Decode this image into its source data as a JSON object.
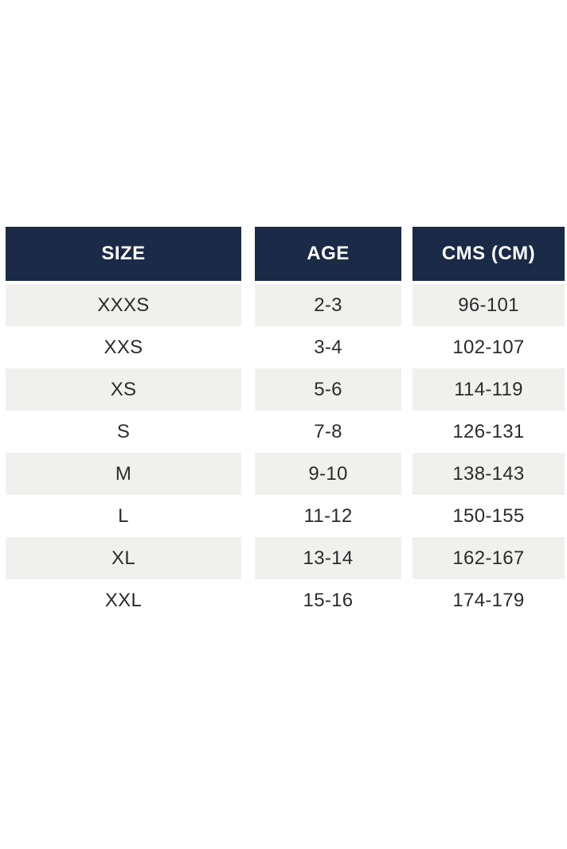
{
  "table": {
    "columns": [
      "SIZE",
      "AGE",
      "CMS (CM)"
    ],
    "rows": [
      {
        "size": "XXXS",
        "age": "2-3",
        "cms": "96-101"
      },
      {
        "size": "XXS",
        "age": "3-4",
        "cms": "102-107"
      },
      {
        "size": "XS",
        "age": "5-6",
        "cms": "114-119"
      },
      {
        "size": "S",
        "age": "7-8",
        "cms": "126-131"
      },
      {
        "size": "M",
        "age": "9-10",
        "cms": "138-143"
      },
      {
        "size": "L",
        "age": "11-12",
        "cms": "150-155"
      },
      {
        "size": "XL",
        "age": "13-14",
        "cms": "162-167"
      },
      {
        "size": "XXL",
        "age": "15-16",
        "cms": "174-179"
      }
    ]
  },
  "colors": {
    "header_bg": "#1a2a47",
    "header_text": "#ffffff",
    "row_alt_bg": "#f0f0ef",
    "row_bg": "#ffffff",
    "row_text": "#2b2b2b"
  }
}
